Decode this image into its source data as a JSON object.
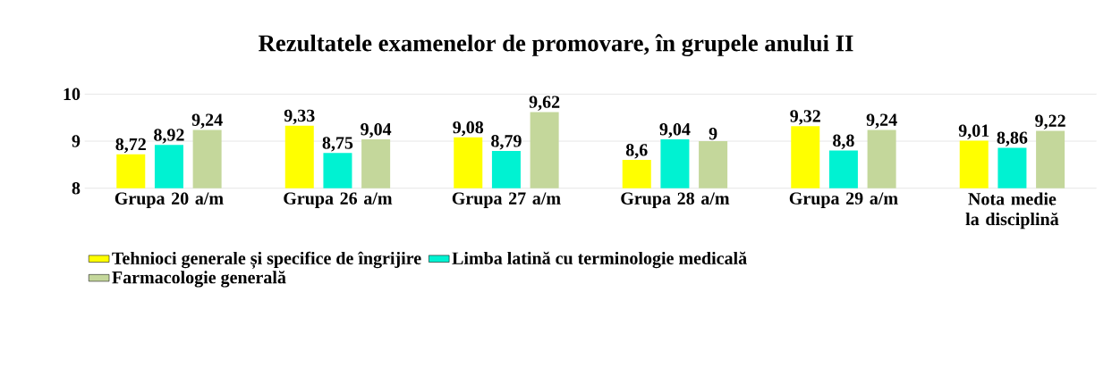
{
  "chart_data": {
    "type": "bar",
    "title": "Rezultatele examenelor de promovare, în grupele anului II",
    "categories": [
      "Grupa 20 a/m",
      "Grupa 26 a/m",
      "Grupa 27 a/m",
      "Grupa 28 a/m",
      "Grupa 29 a/m",
      "Nota medie la disciplină"
    ],
    "series": [
      {
        "name": "Tehnioci generale și specifice de îngrijire",
        "color": "#ffff00",
        "values": [
          8.72,
          9.33,
          9.08,
          8.6,
          9.32,
          9.01
        ],
        "value_labels": [
          "8,72",
          "9,33",
          "9,08",
          "8,6",
          "9,32",
          "9,01"
        ]
      },
      {
        "name": "Limba latină cu terminologie medicală",
        "color": "#00f2d2",
        "values": [
          8.92,
          8.75,
          8.79,
          9.04,
          8.8,
          8.86
        ],
        "value_labels": [
          "8,92",
          "8,75",
          "8,79",
          "9,04",
          "8,8",
          "8,86"
        ]
      },
      {
        "name": "Farmacologie generală",
        "color": "#c4d79b",
        "values": [
          9.24,
          9.04,
          9.62,
          9,
          9.24,
          9.22
        ],
        "value_labels": [
          "9,24",
          "9,04",
          "9,62",
          "9",
          "9,24",
          "9,22"
        ]
      }
    ],
    "ylim": [
      8,
      10
    ],
    "yticks": [
      8,
      9,
      10
    ],
    "grid": "y",
    "legend": "bottom"
  }
}
